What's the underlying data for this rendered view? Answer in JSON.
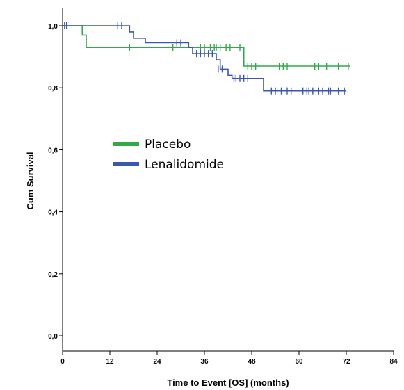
{
  "chart_data": {
    "type": "line",
    "subtype": "kaplan-meier",
    "xlabel": "Time to Event [OS] (months)",
    "ylabel": "Cum Survival",
    "xlim": [
      0,
      84
    ],
    "ylim": [
      0,
      1.0
    ],
    "xticks": [
      "0",
      "12",
      "24",
      "36",
      "48",
      "60",
      "72",
      "84"
    ],
    "yticks": [
      "0,0",
      "0,2",
      "0,4",
      "0,6",
      "0,8",
      "1,0"
    ],
    "legend_position": "center-left",
    "series": [
      {
        "name": "Placebo",
        "color": "#2eaa4a",
        "steps": [
          [
            0,
            1.0
          ],
          [
            5,
            1.0
          ],
          [
            5,
            0.97
          ],
          [
            6,
            0.97
          ],
          [
            6,
            0.93
          ],
          [
            46,
            0.93
          ],
          [
            46,
            0.87
          ],
          [
            73,
            0.87
          ]
        ],
        "censored": [
          [
            17,
            0.93
          ],
          [
            28,
            0.93
          ],
          [
            35,
            0.93
          ],
          [
            36,
            0.93
          ],
          [
            37.5,
            0.93
          ],
          [
            38.5,
            0.93
          ],
          [
            39,
            0.93
          ],
          [
            40,
            0.93
          ],
          [
            41.5,
            0.93
          ],
          [
            42.5,
            0.93
          ],
          [
            45,
            0.93
          ],
          [
            47,
            0.87
          ],
          [
            48,
            0.87
          ],
          [
            49,
            0.87
          ],
          [
            55,
            0.87
          ],
          [
            56,
            0.87
          ],
          [
            57,
            0.87
          ],
          [
            64,
            0.87
          ],
          [
            65,
            0.87
          ],
          [
            67,
            0.87
          ],
          [
            70,
            0.87
          ],
          [
            72.5,
            0.87
          ]
        ]
      },
      {
        "name": "Lenalidomide",
        "color": "#3a56b0",
        "steps": [
          [
            0,
            1.0
          ],
          [
            17,
            1.0
          ],
          [
            17,
            0.98
          ],
          [
            18,
            0.98
          ],
          [
            18,
            0.96
          ],
          [
            21,
            0.96
          ],
          [
            21,
            0.945
          ],
          [
            32,
            0.945
          ],
          [
            32,
            0.93
          ],
          [
            33,
            0.93
          ],
          [
            33,
            0.91
          ],
          [
            39,
            0.91
          ],
          [
            39,
            0.89
          ],
          [
            40,
            0.89
          ],
          [
            40,
            0.86
          ],
          [
            42,
            0.86
          ],
          [
            42,
            0.84
          ],
          [
            43,
            0.84
          ],
          [
            43,
            0.83
          ],
          [
            51,
            0.83
          ],
          [
            51,
            0.79
          ],
          [
            72,
            0.79
          ]
        ],
        "censored": [
          [
            0.5,
            1.0
          ],
          [
            1,
            1.0
          ],
          [
            14,
            1.0
          ],
          [
            15,
            1.0
          ],
          [
            29,
            0.945
          ],
          [
            30,
            0.945
          ],
          [
            34,
            0.91
          ],
          [
            35,
            0.91
          ],
          [
            36,
            0.91
          ],
          [
            37,
            0.91
          ],
          [
            38,
            0.91
          ],
          [
            39.5,
            0.86
          ],
          [
            40.5,
            0.86
          ],
          [
            43.5,
            0.83
          ],
          [
            44,
            0.83
          ],
          [
            45,
            0.83
          ],
          [
            46,
            0.83
          ],
          [
            47,
            0.83
          ],
          [
            53,
            0.79
          ],
          [
            54,
            0.79
          ],
          [
            55.5,
            0.79
          ],
          [
            57,
            0.79
          ],
          [
            58,
            0.79
          ],
          [
            61,
            0.79
          ],
          [
            62,
            0.79
          ],
          [
            62.5,
            0.79
          ],
          [
            63.5,
            0.79
          ],
          [
            65,
            0.79
          ],
          [
            66,
            0.79
          ],
          [
            67.5,
            0.79
          ],
          [
            68,
            0.79
          ],
          [
            70,
            0.79
          ],
          [
            71.5,
            0.79
          ]
        ]
      }
    ]
  }
}
